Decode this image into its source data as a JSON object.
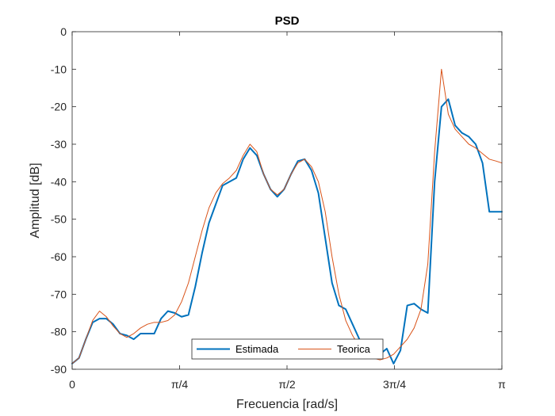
{
  "chart_data": {
    "type": "line",
    "title": "PSD",
    "xlabel": "Frecuencia [rad/s]",
    "ylabel": "Amplitud [dB]",
    "xlim": [
      0,
      3.14159
    ],
    "ylim": [
      -90,
      0
    ],
    "x_ticks": [
      {
        "value": 0,
        "label": "0"
      },
      {
        "value": 0.785398,
        "label": "π/4"
      },
      {
        "value": 1.570796,
        "label": "π/2"
      },
      {
        "value": 2.356194,
        "label": "3π/4"
      },
      {
        "value": 3.141593,
        "label": "π"
      }
    ],
    "y_ticks": [
      0,
      -10,
      -20,
      -30,
      -40,
      -50,
      -60,
      -70,
      -80,
      -90
    ],
    "y_tick_labels": [
      "0",
      "-10",
      "-20",
      "-30",
      "-40",
      "-50",
      "-60",
      "-70",
      "-80",
      "-90"
    ],
    "grid": false,
    "legend_position": "bottom-center",
    "series": [
      {
        "name": "Estimada",
        "color": "#0072BD",
        "x": [
          0,
          0.05,
          0.1,
          0.15,
          0.2,
          0.25,
          0.3,
          0.35,
          0.4,
          0.45,
          0.5,
          0.55,
          0.6,
          0.65,
          0.7,
          0.75,
          0.8,
          0.85,
          0.9,
          0.95,
          1.0,
          1.05,
          1.1,
          1.15,
          1.2,
          1.25,
          1.3,
          1.35,
          1.4,
          1.45,
          1.5,
          1.55,
          1.6,
          1.65,
          1.7,
          1.75,
          1.8,
          1.85,
          1.9,
          1.95,
          2.0,
          2.05,
          2.1,
          2.15,
          2.2,
          2.25,
          2.3,
          2.35,
          2.4,
          2.45,
          2.5,
          2.55,
          2.6,
          2.65,
          2.7,
          2.75,
          2.8,
          2.85,
          2.9,
          2.95,
          3.0,
          3.05,
          3.1,
          3.14159
        ],
        "values": [
          -88.5,
          -87,
          -82,
          -77.5,
          -76.5,
          -76.5,
          -78,
          -80.5,
          -81,
          -82,
          -80.5,
          -80.5,
          -80.5,
          -76.5,
          -74.5,
          -75,
          -76,
          -75.5,
          -68,
          -59,
          -51,
          -46,
          -41,
          -40,
          -39,
          -34,
          -31,
          -33,
          -38,
          -42,
          -44,
          -42,
          -38,
          -34.5,
          -34,
          -37,
          -43,
          -55,
          -67,
          -73,
          -74,
          -78,
          -82,
          -84,
          -85.5,
          -86,
          -84.5,
          -88.5,
          -85,
          -73,
          -72.5,
          -74,
          -75,
          -40,
          -20,
          -18,
          -25,
          -27,
          -28,
          -30,
          -35,
          -48,
          -48,
          -48
        ]
      },
      {
        "name": "Teorica",
        "color": "#D95319",
        "x": [
          0,
          0.05,
          0.1,
          0.15,
          0.2,
          0.25,
          0.3,
          0.35,
          0.4,
          0.45,
          0.5,
          0.55,
          0.6,
          0.65,
          0.7,
          0.75,
          0.8,
          0.85,
          0.9,
          0.95,
          1.0,
          1.05,
          1.1,
          1.15,
          1.2,
          1.25,
          1.3,
          1.35,
          1.4,
          1.45,
          1.5,
          1.55,
          1.6,
          1.65,
          1.7,
          1.75,
          1.8,
          1.85,
          1.9,
          1.95,
          2.0,
          2.05,
          2.1,
          2.15,
          2.2,
          2.25,
          2.3,
          2.35,
          2.4,
          2.45,
          2.5,
          2.55,
          2.6,
          2.65,
          2.7,
          2.75,
          2.8,
          2.85,
          2.9,
          2.95,
          3.0,
          3.05,
          3.1,
          3.14159
        ],
        "values": [
          -88.5,
          -87,
          -82,
          -77,
          -74.5,
          -76,
          -78.5,
          -80.5,
          -81.5,
          -80.5,
          -79,
          -78,
          -77.5,
          -77.5,
          -77,
          -75.5,
          -72,
          -67,
          -60,
          -53,
          -47,
          -43,
          -40.5,
          -39,
          -37,
          -33,
          -30,
          -32,
          -38,
          -42,
          -43.5,
          -42,
          -38,
          -35,
          -34,
          -36,
          -40,
          -48,
          -60,
          -70,
          -77,
          -81,
          -84,
          -86,
          -87,
          -87.5,
          -87,
          -86,
          -84,
          -82,
          -79,
          -74,
          -62,
          -32,
          -10,
          -22,
          -26,
          -28,
          -30,
          -31,
          -32.5,
          -34,
          -34.5,
          -35
        ]
      }
    ]
  }
}
